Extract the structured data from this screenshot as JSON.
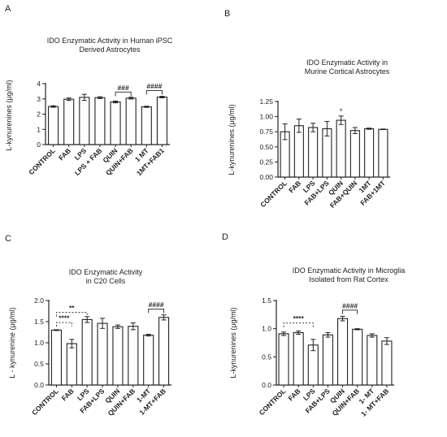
{
  "chart_data": [
    {
      "panel_label": "A",
      "type": "bar",
      "title_lines": [
        "IDO Enzymatic Activity in Human iPSC",
        "Derived Astrocytes"
      ],
      "ylabel": "L-kynurenines (μg/ml)",
      "ylim": [
        0,
        4
      ],
      "yticks": [
        "0",
        "1",
        "2",
        "3",
        "4"
      ],
      "categories": [
        "CONTROL",
        "FAB",
        "LPS",
        "LPS + FAB",
        "QUIN",
        "QUIN+FAB",
        "1 MT",
        "1MT+FAB1"
      ],
      "values": [
        2.5,
        2.98,
        3.1,
        3.08,
        2.8,
        3.05,
        2.48,
        3.12
      ],
      "errors": [
        0.05,
        0.08,
        0.2,
        0.06,
        0.06,
        0.06,
        0.04,
        0.05
      ],
      "star_annotations": [],
      "brackets": [
        {
          "from": 4,
          "to": 5,
          "label": "###",
          "y": 3.45
        },
        {
          "from": 6,
          "to": 7,
          "label": "####",
          "y": 3.55
        }
      ]
    },
    {
      "panel_label": "B",
      "type": "bar",
      "title_lines": [
        "IDO Enzymatic Activity in",
        "Murine Cortical Astrocytes"
      ],
      "ylabel": "L-kynurenines (μg/ml)",
      "ylim": [
        0,
        1.25
      ],
      "yticks": [
        "0.00",
        "0.25",
        "0.50",
        "0.75",
        "1.00",
        "1.25"
      ],
      "categories": [
        "CONTROL",
        "FAB",
        "LPS",
        "FAB+LPS",
        "QUIN",
        "FAB+QUIN",
        "1MT",
        "FAB+1MT"
      ],
      "values": [
        0.75,
        0.85,
        0.82,
        0.8,
        0.94,
        0.77,
        0.8,
        0.79
      ],
      "errors": [
        0.13,
        0.11,
        0.07,
        0.12,
        0.07,
        0.05,
        0.01,
        0.005
      ],
      "star_annotations": [
        {
          "index": 4,
          "label": "*"
        }
      ],
      "brackets": []
    },
    {
      "panel_label": "C",
      "type": "bar",
      "title_lines": [
        "IDO Enzymatic Activity",
        "in C20 Cells"
      ],
      "ylabel": "L - kynurenine (μg/ml)",
      "ylim": [
        0,
        2.0
      ],
      "yticks": [
        "0.0",
        "0.5",
        "1.0",
        "1.5",
        "2.0"
      ],
      "categories": [
        "CONTROL",
        "FAB",
        "LPS",
        "FAB+LPS",
        "QUIN",
        "QUIN+FAB",
        "1-MT",
        "1-MT+FAB"
      ],
      "values": [
        1.3,
        0.98,
        1.55,
        1.46,
        1.38,
        1.39,
        1.18,
        1.6
      ],
      "errors": [
        0.01,
        0.1,
        0.07,
        0.12,
        0.04,
        0.08,
        0.02,
        0.06
      ],
      "star_annotations": [],
      "brackets": [
        {
          "from": 0,
          "to": 1,
          "label": "****",
          "y": 1.48,
          "dashed": true
        },
        {
          "from": 0,
          "to": 2,
          "label": "**",
          "y": 1.72,
          "dashed": true
        },
        {
          "from": 6,
          "to": 7,
          "label": "####",
          "y": 1.8
        }
      ]
    },
    {
      "panel_label": "D",
      "type": "bar",
      "title_lines": [
        "IDO Enzymatic Activity in Microglia",
        "Isolated from Rat Cortex"
      ],
      "ylabel": "L-kynurenines (μg/ml)",
      "ylim": [
        0,
        1.5
      ],
      "yticks": [
        "0.0",
        "0.5",
        "1.0",
        "1.5"
      ],
      "categories": [
        "CONTROL",
        "FAB",
        "LPS",
        "FAB+LPS",
        "QUIN",
        "QUIN+FAB",
        "1- MT",
        "1- MT+FAB"
      ],
      "values": [
        0.91,
        0.93,
        0.71,
        0.89,
        1.18,
        0.99,
        0.88,
        0.78
      ],
      "errors": [
        0.03,
        0.03,
        0.1,
        0.04,
        0.04,
        0.01,
        0.03,
        0.06
      ],
      "star_annotations": [],
      "brackets": [
        {
          "from": 0,
          "to": 2,
          "label": "****",
          "y": 1.1,
          "dashed": true
        },
        {
          "from": 4,
          "to": 5,
          "label": "####",
          "y": 1.33
        }
      ]
    }
  ]
}
